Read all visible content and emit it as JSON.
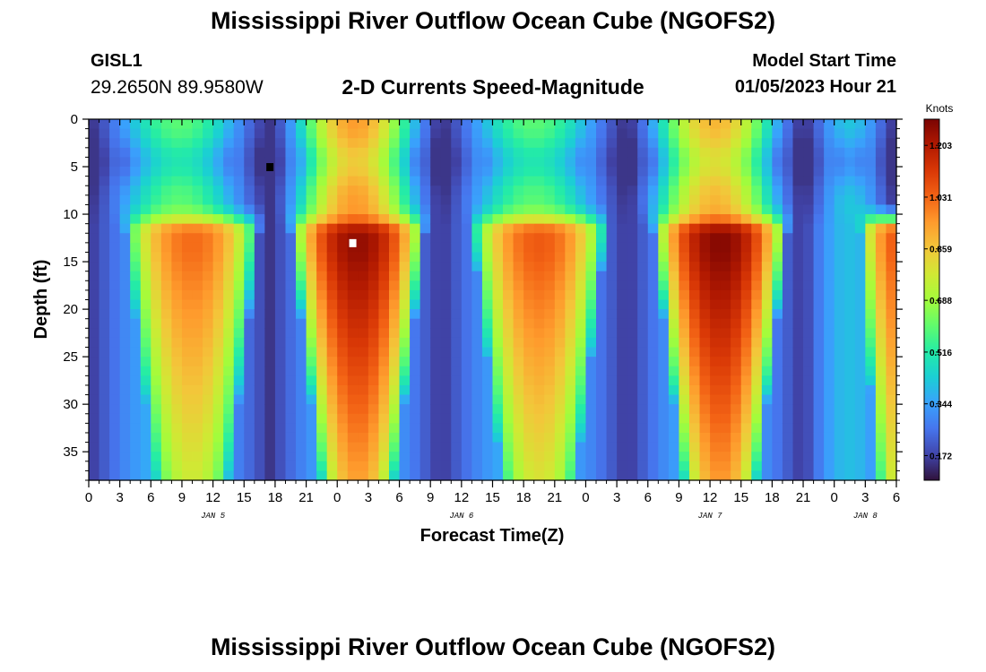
{
  "page": {
    "title": "Mississippi River Outflow Ocean Cube (NGOFS2)",
    "title_repeat": "Mississippi River Outflow Ocean Cube (NGOFS2)",
    "station": "GISL1",
    "location": "29.2650N  89.9580W",
    "variable": "2-D Currents Speed-Magnitude",
    "model_start_label": "Model Start Time",
    "model_start_value": "01/05/2023 Hour 21"
  },
  "chart_data": {
    "type": "heatmap",
    "xlabel": "Forecast Time(Z)",
    "ylabel": "Depth (ft)",
    "x_range_hours_from_jan5_00z": [
      0,
      78
    ],
    "ylim": [
      0,
      38
    ],
    "y_inverted": true,
    "x_tick_labels": [
      "0",
      "3",
      "6",
      "9",
      "12",
      "15",
      "18",
      "21",
      "0",
      "3",
      "6",
      "9",
      "12",
      "15",
      "18",
      "21",
      "0",
      "3",
      "6",
      "9",
      "12",
      "15",
      "18",
      "21",
      "0",
      "3",
      "6"
    ],
    "y_tick_labels": [
      "0",
      "5",
      "10",
      "15",
      "20",
      "25",
      "30",
      "35"
    ],
    "date_labels": [
      {
        "text": "JAN 5",
        "hour": 12
      },
      {
        "text": "JAN 6",
        "hour": 36
      },
      {
        "text": "JAN 7",
        "hour": 60
      },
      {
        "text": "JAN 8",
        "hour": 75
      }
    ],
    "colorbar": {
      "unit": "Knots",
      "tick_labels": [
        "1.203",
        "1.031",
        "0.859",
        "0.688",
        "0.516",
        "0.344",
        "0.172"
      ],
      "range": [
        0.09,
        1.29
      ],
      "colormap": [
        "#30123b",
        "#4145ab",
        "#4675ed",
        "#39a2fc",
        "#1bcfd4",
        "#24eca6",
        "#61fc6c",
        "#a4fc3b",
        "#d1e834",
        "#f3c63a",
        "#fe9b2d",
        "#f36315",
        "#d93806",
        "#b11901",
        "#7a0403"
      ]
    },
    "grid": false,
    "markers": [
      {
        "color": "#000000",
        "hour": 17.5,
        "depth": 5
      },
      {
        "color": "#ffffff",
        "hour": 25.5,
        "depth": 13
      }
    ],
    "speed_model": {
      "surface_depth_max_ft": 9,
      "slack_hours": [
        0,
        17.5,
        34,
        52,
        69,
        78
      ],
      "surface_peak_hours": [
        8,
        25,
        43,
        60,
        73
      ],
      "surface_peak_knots": [
        0.6,
        0.95,
        0.6,
        0.9,
        0.42
      ],
      "deep_peak_hours": [
        10,
        26,
        43.5,
        61,
        78
      ],
      "deep_peak_knots": [
        1.02,
        1.25,
        1.05,
        1.27,
        1.05
      ],
      "deep_lobe_half_widths_hours": [
        6.5,
        6.5,
        6.5,
        6.5,
        3.5
      ],
      "slack_knots": 0.15
    }
  }
}
